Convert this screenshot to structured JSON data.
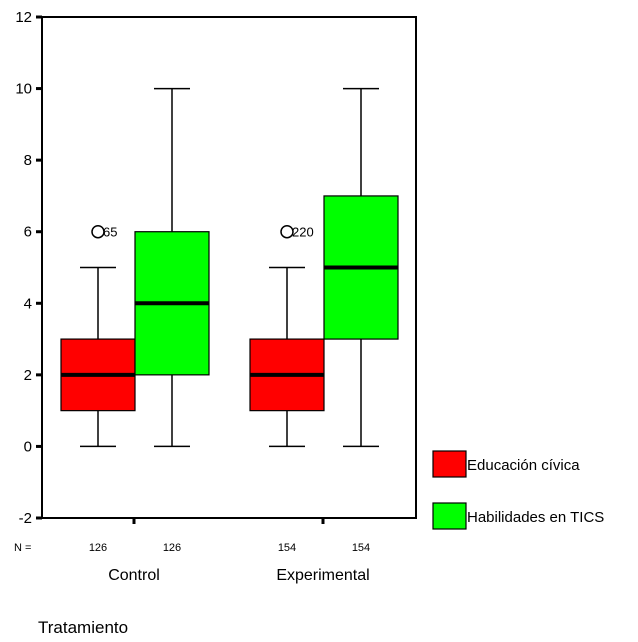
{
  "chart_data": {
    "type": "boxplot",
    "xlabel": "Tratamiento",
    "ylabel": "",
    "ylim": [
      -2,
      12
    ],
    "yticks": [
      -2,
      0,
      2,
      4,
      6,
      8,
      10,
      12
    ],
    "n_prefix": "N =",
    "groups": [
      {
        "label": "Control",
        "boxes": [
          {
            "series": 0,
            "n": "126",
            "whisker_low": 0,
            "q1": 1,
            "median": 2,
            "q3": 3,
            "whisker_high": 5,
            "outliers": [
              {
                "value": 6,
                "label": "65"
              }
            ]
          },
          {
            "series": 1,
            "n": "126",
            "whisker_low": 0,
            "q1": 2,
            "median": 4,
            "q3": 6,
            "whisker_high": 10,
            "outliers": []
          }
        ]
      },
      {
        "label": "Experimental",
        "boxes": [
          {
            "series": 0,
            "n": "154",
            "whisker_low": 0,
            "q1": 1,
            "median": 2,
            "q3": 3,
            "whisker_high": 5,
            "outliers": [
              {
                "value": 6,
                "label": "220"
              }
            ]
          },
          {
            "series": 1,
            "n": "154",
            "whisker_low": 0,
            "q1": 3,
            "median": 5,
            "q3": 7,
            "whisker_high": 10,
            "outliers": []
          }
        ]
      }
    ],
    "series": [
      {
        "name": "Educación cívica",
        "color": "#ff0000"
      },
      {
        "name": "Habilidades en TICS",
        "color": "#00ff00"
      }
    ],
    "legend_position": "right",
    "grid": false
  }
}
